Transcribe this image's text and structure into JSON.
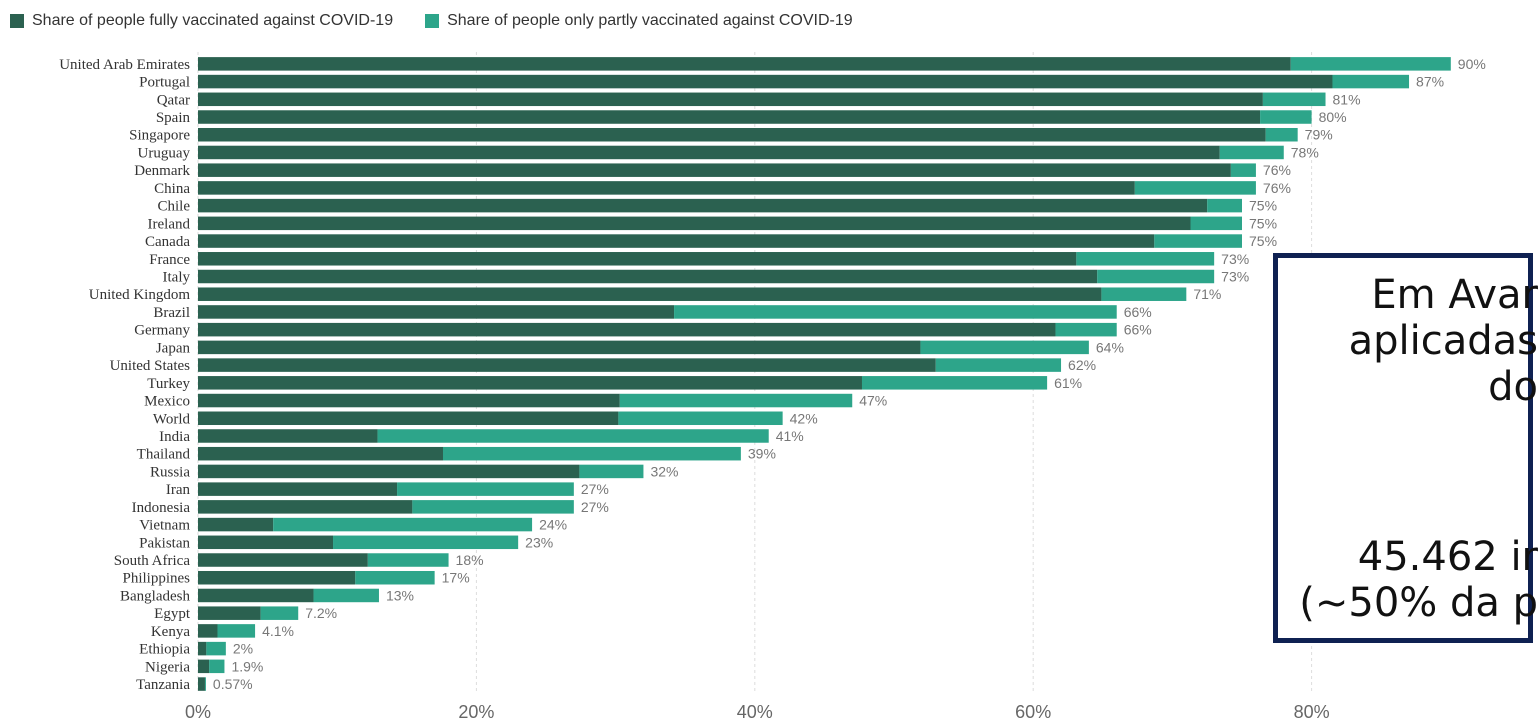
{
  "chart_data": {
    "type": "bar",
    "orientation": "horizontal",
    "stacked": true,
    "categories": [
      "United Arab Emirates",
      "Portugal",
      "Qatar",
      "Spain",
      "Singapore",
      "Uruguay",
      "Denmark",
      "China",
      "Chile",
      "Ireland",
      "Canada",
      "France",
      "Italy",
      "United Kingdom",
      "Brazil",
      "Germany",
      "Japan",
      "United States",
      "Turkey",
      "Mexico",
      "World",
      "India",
      "Thailand",
      "Russia",
      "Iran",
      "Indonesia",
      "Vietnam",
      "Pakistan",
      "South Africa",
      "Philippines",
      "Bangladesh",
      "Egypt",
      "Kenya",
      "Ethiopia",
      "Nigeria",
      "Tanzania"
    ],
    "series": [
      {
        "name": "Share of people fully vaccinated against COVID-19",
        "color": "#2b6150",
        "values": [
          78.5,
          81.5,
          76.5,
          76.3,
          76.7,
          73.4,
          74.2,
          67.3,
          72.5,
          71.3,
          68.7,
          63.1,
          64.6,
          64.9,
          34.2,
          61.6,
          51.9,
          53.0,
          47.7,
          30.3,
          30.2,
          12.9,
          17.6,
          27.4,
          14.3,
          15.4,
          5.4,
          9.7,
          12.2,
          11.3,
          8.3,
          4.5,
          1.4,
          0.6,
          0.8,
          0.5
        ]
      },
      {
        "name": "Share of people only partly vaccinated against COVID-19",
        "color": "#2da58a",
        "values": [
          11.5,
          5.5,
          4.5,
          3.7,
          2.3,
          4.6,
          1.8,
          8.7,
          2.5,
          3.7,
          6.3,
          9.9,
          8.4,
          6.1,
          31.8,
          4.4,
          12.1,
          9.0,
          13.3,
          16.7,
          11.8,
          28.1,
          21.4,
          4.6,
          12.7,
          11.6,
          18.6,
          13.3,
          5.8,
          5.7,
          4.7,
          2.7,
          2.7,
          1.4,
          1.1,
          0.07
        ]
      }
    ],
    "labels": [
      "90%",
      "87%",
      "81%",
      "80%",
      "79%",
      "78%",
      "76%",
      "76%",
      "75%",
      "75%",
      "75%",
      "73%",
      "73%",
      "71%",
      "66%",
      "66%",
      "64%",
      "62%",
      "61%",
      "47%",
      "42%",
      "41%",
      "39%",
      "32%",
      "27%",
      "27%",
      "24%",
      "23%",
      "18%",
      "17%",
      "13%",
      "7.2%",
      "4.1%",
      "2%",
      "1.9%",
      "0.57%"
    ],
    "xlim": [
      0,
      90
    ],
    "xticks": [
      0,
      20,
      40,
      60,
      80
    ],
    "xtick_labels": [
      "0%",
      "20%",
      "40%",
      "60%",
      "80%"
    ],
    "grid": "vertical-dotted",
    "legend": "top-left",
    "colors": {
      "full": "#2b6150",
      "partial": "#2da58a",
      "annotation_border": "#0f2152"
    }
  },
  "annotation": {
    "line1": "Em Avar",
    "line2": "aplicadas",
    "line3": "do",
    "line4": "45.462 ir",
    "line5": "(~50% da p"
  }
}
